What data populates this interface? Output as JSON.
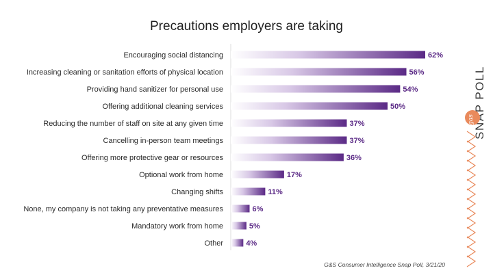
{
  "chart_data": {
    "type": "bar",
    "orientation": "horizontal",
    "title": "Precautions employers are taking",
    "categories": [
      "Encouraging social distancing",
      "Increasing cleaning or sanitation efforts of physical location",
      "Providing hand sanitizer for personal use",
      "Offering additional cleaning services",
      "Reducing the number of staff on site at any given time",
      "Cancelling in-person team meetings",
      "Offering more protective gear or resources",
      "Optional work from home",
      "Changing shifts",
      "None, my company is not taking any preventative measures",
      "Mandatory work from home",
      "Other"
    ],
    "values": [
      62,
      56,
      54,
      50,
      37,
      37,
      36,
      17,
      11,
      6,
      5,
      4
    ],
    "value_labels": [
      "62%",
      "56%",
      "54%",
      "50%",
      "37%",
      "37%",
      "36%",
      "17%",
      "11%",
      "6%",
      "5%",
      "4%"
    ],
    "xlim": [
      0,
      62
    ],
    "grid": false,
    "legend": "none",
    "colors": {
      "bar_start": "#ffffff",
      "bar_end": "#5b2a86",
      "value_text": "#5b2a86"
    }
  },
  "source": "G&S Consumer Intelligence Snap Poll, 3/21/20",
  "brand": {
    "side_label": "SNAP POLL",
    "logo_text": "gas",
    "accent_color": "#e98a5c"
  }
}
